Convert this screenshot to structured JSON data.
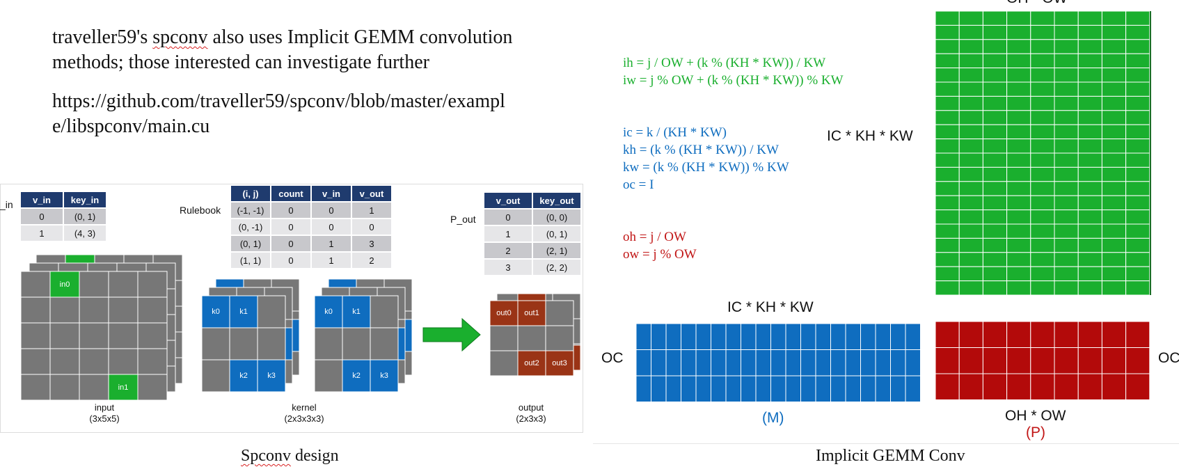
{
  "intro": {
    "line1_prefix": "traveller59's ",
    "line1_underlined": "spconv",
    "line1_suffix": " also uses Implicit GEMM convolution methods; those interested can investigate further",
    "link": "https://github.com/traveller59/spconv/blob/master/example/libspconv/main.cu"
  },
  "spconv": {
    "cut_label": "_in",
    "v_in_table": {
      "headers": [
        "v_in",
        "key_in"
      ],
      "rows": [
        [
          "0",
          "(0, 1)"
        ],
        [
          "1",
          "(4, 3)"
        ]
      ]
    },
    "rulebook_label": "Rulebook",
    "rulebook_table": {
      "headers": [
        "(i, j)",
        "count",
        "v_in",
        "v_out"
      ],
      "rows": [
        [
          "(-1, -1)",
          "0",
          "0",
          "1"
        ],
        [
          "(0, -1)",
          "0",
          "0",
          "0"
        ],
        [
          "(0, 1)",
          "0",
          "1",
          "3"
        ],
        [
          "(1, 1)",
          "0",
          "1",
          "2"
        ]
      ]
    },
    "p_out_label": "P_out",
    "v_out_table": {
      "headers": [
        "v_out",
        "key_out"
      ],
      "rows": [
        [
          "0",
          "(0, 0)"
        ],
        [
          "1",
          "(0, 1)"
        ],
        [
          "2",
          "(2, 1)"
        ],
        [
          "3",
          "(2, 2)"
        ]
      ]
    },
    "input_cells": [
      "in0",
      "in1"
    ],
    "kernel_cells": [
      "k0",
      "k1",
      "k2",
      "k3"
    ],
    "output_cells": [
      "out0",
      "out1",
      "out2",
      "out3"
    ],
    "input_label": "input",
    "input_dims": "(3x5x5)",
    "kernel_label": "kernel",
    "kernel_dims": "(2x3x3x3)",
    "output_label": "output",
    "output_dims": "(2x3x3)",
    "caption_underlined": "Spconv",
    "caption_suffix": " design"
  },
  "gemm": {
    "formulas_green": [
      "ih = j / OW + (k % (KH * KW)) / KW",
      "iw = j % OW + (k % (KH * KW)) % KW"
    ],
    "formulas_blue": [
      "ic = k / (KH * KW)",
      "kh = (k % (KH * KW)) / KW",
      "kw = (k % (KH * KW)) % KW",
      "oc = I"
    ],
    "formulas_red": [
      "oh = j / OW",
      "ow = j % OW"
    ],
    "top_label": "OH * OW",
    "side_label": "IC * KH * KW",
    "m_top_label": "IC * KH * KW",
    "oc_label": "OC",
    "oc_right_label": "OC",
    "m_label": "(M)",
    "bottom_label": "OH * OW",
    "p_label": "(P)",
    "caption": "Implicit GEMM Conv"
  },
  "colors": {
    "green": "#1aaf2e",
    "blue": "#0f6dbf",
    "red": "#b30a0a",
    "navy": "#1f3b6e",
    "gray_cell": "#777777",
    "rust": "#9a3416"
  }
}
